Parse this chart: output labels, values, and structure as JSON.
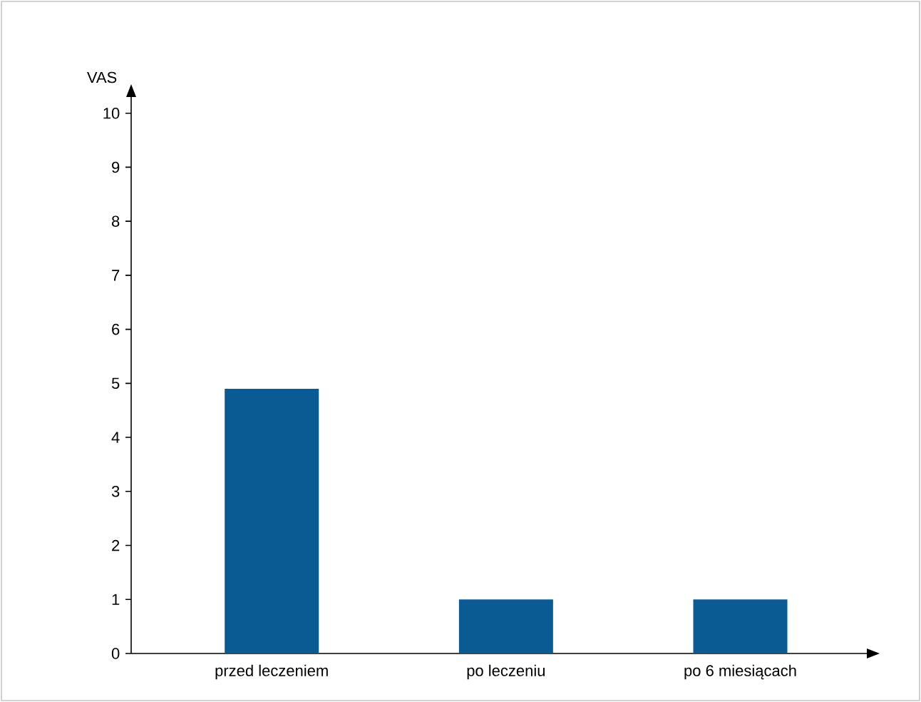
{
  "chart_data": {
    "type": "bar",
    "ylabel": "VAS",
    "categories": [
      "przed leczeniem",
      "po leczeniu",
      "po 6 miesiącach"
    ],
    "values": [
      4.9,
      1,
      1
    ],
    "color": "#0a5a94",
    "ylim": [
      0,
      10.3
    ],
    "yticks": [
      0,
      1,
      2,
      3,
      4,
      5,
      6,
      7,
      8,
      9,
      10
    ]
  }
}
